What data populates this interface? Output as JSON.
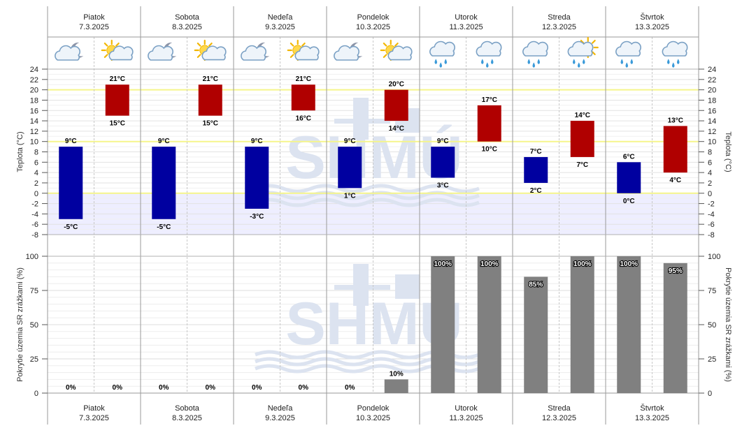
{
  "days": [
    {
      "name": "Piatok",
      "date": "7.3.2025"
    },
    {
      "name": "Sobota",
      "date": "8.3.2025"
    },
    {
      "name": "Nedeľa",
      "date": "9.3.2025"
    },
    {
      "name": "Pondelok",
      "date": "10.3.2025"
    },
    {
      "name": "Utorok",
      "date": "11.3.2025"
    },
    {
      "name": "Streda",
      "date": "12.3.2025"
    },
    {
      "name": "Štvrtok",
      "date": "13.3.2025"
    }
  ],
  "icons": [
    "cloud-moon-icon",
    "sun-cloud-icon",
    "cloud-moon-icon",
    "sun-cloud-icon",
    "cloud-moon-icon",
    "sun-cloud-icon",
    "cloud-moon-icon",
    "sun-cloud-icon",
    "rain-cloud-icon",
    "rain-cloud-icon",
    "rain-cloud-icon",
    "sun-rain-cloud-icon",
    "rain-cloud-icon",
    "rain-cloud-icon"
  ],
  "colors": {
    "night": "#0000a0",
    "day": "#b00000",
    "precip": "#808080",
    "below_zero": "#eeeeff",
    "highlight_line": "#f5f58a",
    "watermark": "#dce3f0"
  },
  "watermark_text": "SHMÚ",
  "chart_data": [
    {
      "type": "bar",
      "ylabel_left": "Teplota (°C)",
      "ylabel_right": "Teplota (°C)",
      "ylim": [
        -8,
        24
      ],
      "yticks": [
        -8,
        -6,
        -4,
        -2,
        0,
        2,
        4,
        6,
        8,
        10,
        12,
        14,
        16,
        18,
        20,
        22,
        24
      ],
      "highlight_lines": [
        0,
        10,
        20
      ],
      "unit": "°C",
      "periods": [
        {
          "kind": "night",
          "min": -5,
          "max": 9
        },
        {
          "kind": "day",
          "min": 15,
          "max": 21
        },
        {
          "kind": "night",
          "min": -5,
          "max": 9
        },
        {
          "kind": "day",
          "min": 15,
          "max": 21
        },
        {
          "kind": "night",
          "min": -3,
          "max": 9
        },
        {
          "kind": "day",
          "min": 16,
          "max": 21
        },
        {
          "kind": "night",
          "min": 1,
          "max": 9
        },
        {
          "kind": "day",
          "min": 14,
          "max": 20
        },
        {
          "kind": "night",
          "min": 3,
          "max": 9
        },
        {
          "kind": "day",
          "min": 10,
          "max": 17
        },
        {
          "kind": "night",
          "min": 2,
          "max": 7
        },
        {
          "kind": "day",
          "min": 7,
          "max": 14
        },
        {
          "kind": "night",
          "min": 0,
          "max": 6
        },
        {
          "kind": "day",
          "min": 4,
          "max": 13
        }
      ]
    },
    {
      "type": "bar",
      "ylabel_left": "Pokrytie územia SR zrážkami (%)",
      "ylabel_right": "Pokrytie územia SR zrážkami (%)",
      "ylim": [
        0,
        100
      ],
      "yticks": [
        0,
        25,
        50,
        75,
        100
      ],
      "unit": "%",
      "values": [
        0,
        0,
        0,
        0,
        0,
        0,
        0,
        10,
        100,
        100,
        85,
        100,
        100,
        95
      ]
    }
  ]
}
